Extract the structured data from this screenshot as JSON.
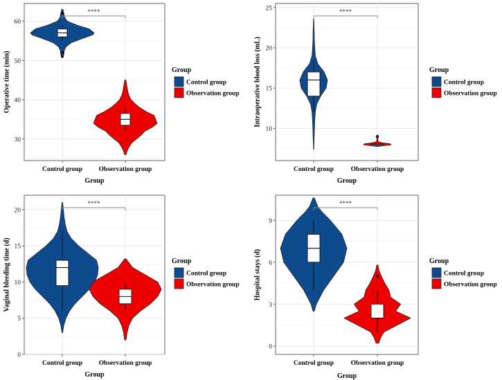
{
  "chart_data": [
    {
      "type": "violin",
      "xlabel": "Group",
      "ylabel": "Operative time (min)",
      "categories": [
        "Control group",
        "Observation group"
      ],
      "yticks": [
        30,
        40,
        50,
        60
      ],
      "ylim": [
        24.5,
        64.5
      ],
      "significance": "****",
      "legend": {
        "title": "Group",
        "items": [
          "Control group",
          "Observation group"
        ]
      },
      "groups": [
        {
          "name": "Control group",
          "color": "#0d4a8e",
          "median": 57,
          "q1": 56,
          "q3": 58,
          "whisker_low": 55,
          "whisker_high": 59,
          "outliers": [
            51,
            52,
            62
          ],
          "density": [
            [
              50.8,
              0.02
            ],
            [
              51.5,
              0.05
            ],
            [
              52.5,
              0.06
            ],
            [
              53.5,
              0.12
            ],
            [
              54.5,
              0.28
            ],
            [
              55.5,
              0.6
            ],
            [
              56.5,
              0.95
            ],
            [
              57,
              1.0
            ],
            [
              58,
              0.85
            ],
            [
              59,
              0.45
            ],
            [
              60,
              0.15
            ],
            [
              61,
              0.07
            ],
            [
              62,
              0.05
            ],
            [
              63,
              0.02
            ]
          ]
        },
        {
          "name": "Observation group",
          "color": "#ee0000",
          "median": 35,
          "q1": 33.5,
          "q3": 36.5,
          "whisker_low": 32,
          "whisker_high": 38,
          "outliers": [],
          "density": [
            [
              26,
              0.02
            ],
            [
              27,
              0.06
            ],
            [
              28,
              0.12
            ],
            [
              29,
              0.2
            ],
            [
              30,
              0.35
            ],
            [
              31,
              0.5
            ],
            [
              32,
              0.62
            ],
            [
              33,
              0.85
            ],
            [
              34,
              1.0
            ],
            [
              35,
              0.95
            ],
            [
              36,
              0.9
            ],
            [
              37,
              0.65
            ],
            [
              38,
              0.45
            ],
            [
              39,
              0.3
            ],
            [
              40,
              0.18
            ],
            [
              41,
              0.12
            ],
            [
              42,
              0.08
            ],
            [
              43,
              0.06
            ],
            [
              44,
              0.04
            ],
            [
              45,
              0.02
            ]
          ]
        }
      ]
    },
    {
      "type": "violin",
      "xlabel": "Group",
      "ylabel": "Intraoperative blood loss (mL)",
      "categories": [
        "Control group",
        "Observation group"
      ],
      "yticks": [
        10,
        15,
        20,
        25
      ],
      "ylim": [
        6,
        25.5
      ],
      "significance": "****",
      "legend": {
        "title": "Group",
        "items": [
          "Control group",
          "Observation group"
        ]
      },
      "groups": [
        {
          "name": "Control group",
          "color": "#0d4a8e",
          "median": 16,
          "q1": 14,
          "q3": 17,
          "whisker_low": 12,
          "whisker_high": 18.5,
          "outliers": [],
          "density": [
            [
              7.4,
              0.01
            ],
            [
              8,
              0.02
            ],
            [
              9,
              0.04
            ],
            [
              10,
              0.06
            ],
            [
              11,
              0.08
            ],
            [
              12,
              0.12
            ],
            [
              13,
              0.22
            ],
            [
              14,
              0.5
            ],
            [
              15,
              0.9
            ],
            [
              16,
              1.0
            ],
            [
              17,
              0.75
            ],
            [
              18,
              0.3
            ],
            [
              19,
              0.12
            ],
            [
              20,
              0.08
            ],
            [
              21,
              0.05
            ],
            [
              22,
              0.04
            ],
            [
              23,
              0.02
            ],
            [
              23.6,
              0.01
            ]
          ]
        },
        {
          "name": "Observation group",
          "color": "#ee0000",
          "median": 8,
          "q1": 7.95,
          "q3": 8.05,
          "whisker_low": 7.9,
          "whisker_high": 8.1,
          "outliers": [
            9
          ],
          "density": [
            [
              7.75,
              0.05
            ],
            [
              7.85,
              0.45
            ],
            [
              7.95,
              0.95
            ],
            [
              8.0,
              1.0
            ],
            [
              8.1,
              0.9
            ],
            [
              8.2,
              0.4
            ],
            [
              8.3,
              0.1
            ],
            [
              8.5,
              0.04
            ],
            [
              8.8,
              0.05
            ],
            [
              9.0,
              0.08
            ],
            [
              9.15,
              0.03
            ]
          ]
        }
      ]
    },
    {
      "type": "violin",
      "xlabel": "Group",
      "ylabel": "Vaginal bleeding time (d)",
      "categories": [
        "Control group",
        "Observation group"
      ],
      "yticks": [
        0,
        5,
        10,
        15,
        20
      ],
      "ylim": [
        0,
        22
      ],
      "significance": "****",
      "legend": {
        "title": "Group",
        "items": [
          "Control group",
          "Observation group"
        ]
      },
      "groups": [
        {
          "name": "Control group",
          "color": "#0d4a8e",
          "median": 12,
          "q1": 9.5,
          "q3": 13,
          "whisker_low": 6,
          "whisker_high": 17,
          "outliers": [],
          "density": [
            [
              3,
              0.01
            ],
            [
              4,
              0.04
            ],
            [
              5,
              0.1
            ],
            [
              6,
              0.2
            ],
            [
              7,
              0.35
            ],
            [
              8,
              0.55
            ],
            [
              9,
              0.75
            ],
            [
              10,
              0.9
            ],
            [
              11,
              0.98
            ],
            [
              12,
              1.0
            ],
            [
              13,
              0.95
            ],
            [
              14,
              0.7
            ],
            [
              15,
              0.45
            ],
            [
              16,
              0.25
            ],
            [
              17,
              0.13
            ],
            [
              18,
              0.08
            ],
            [
              19,
              0.05
            ],
            [
              20,
              0.03
            ],
            [
              21,
              0.01
            ]
          ]
        },
        {
          "name": "Observation group",
          "color": "#ee0000",
          "median": 8,
          "q1": 7,
          "q3": 9,
          "whisker_low": 6,
          "whisker_high": 10,
          "outliers": [],
          "density": [
            [
              2,
              0.02
            ],
            [
              3,
              0.05
            ],
            [
              4,
              0.1
            ],
            [
              5,
              0.2
            ],
            [
              6,
              0.42
            ],
            [
              7,
              0.7
            ],
            [
              8,
              0.9
            ],
            [
              9,
              1.0
            ],
            [
              10,
              0.9
            ],
            [
              11,
              0.55
            ],
            [
              12,
              0.2
            ],
            [
              13,
              0.05
            ],
            [
              13.2,
              0.02
            ]
          ]
        }
      ]
    },
    {
      "type": "violin",
      "xlabel": "Group",
      "ylabel": "Hospital stays (d)",
      "categories": [
        "Control group",
        "Observation group"
      ],
      "yticks": [
        0,
        3,
        6,
        9
      ],
      "ylim": [
        -0.6,
        10.8
      ],
      "significance": "****",
      "legend": {
        "title": "Group",
        "items": [
          "Control group",
          "Observation group"
        ]
      },
      "groups": [
        {
          "name": "Control group",
          "color": "#0d4a8e",
          "median": 7,
          "q1": 6,
          "q3": 8,
          "whisker_low": 4,
          "whisker_high": 9,
          "outliers": [],
          "density": [
            [
              2.5,
              0.02
            ],
            [
              3,
              0.08
            ],
            [
              4,
              0.3
            ],
            [
              5,
              0.6
            ],
            [
              6,
              0.9
            ],
            [
              7,
              1.0
            ],
            [
              8,
              0.85
            ],
            [
              9,
              0.5
            ],
            [
              9.6,
              0.25
            ],
            [
              10,
              0.12
            ],
            [
              10.6,
              0.02
            ]
          ]
        },
        {
          "name": "Observation group",
          "color": "#ee0000",
          "median": 2,
          "q1": 2,
          "q3": 3,
          "whisker_low": 1,
          "whisker_high": 4,
          "outliers": [
            5
          ],
          "density": [
            [
              0.2,
              0.04
            ],
            [
              0.6,
              0.1
            ],
            [
              1,
              0.2
            ],
            [
              1.5,
              0.6
            ],
            [
              2,
              1.0
            ],
            [
              2.5,
              0.55
            ],
            [
              3,
              0.7
            ],
            [
              3.5,
              0.4
            ],
            [
              4,
              0.35
            ],
            [
              4.5,
              0.22
            ],
            [
              5,
              0.12
            ],
            [
              5.4,
              0.05
            ],
            [
              5.8,
              0.02
            ]
          ]
        }
      ]
    }
  ]
}
